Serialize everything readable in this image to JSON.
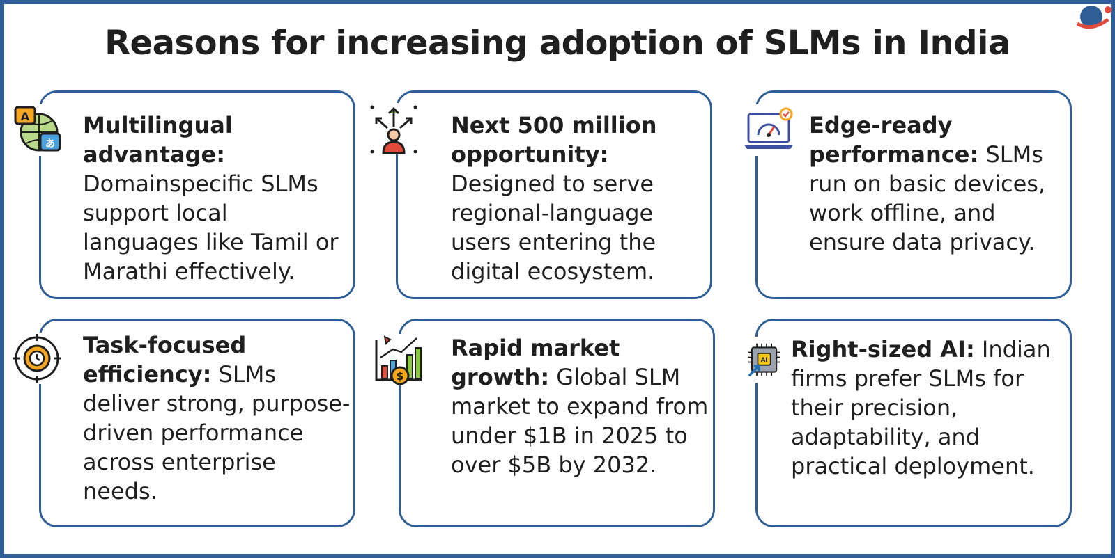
{
  "title": "Reasons for increasing adoption of SLMs in India",
  "logo_icon": "brand-logo-icon",
  "cards": [
    {
      "heading": "Multilingual advantage:",
      "body": "Domainspecific SLMs support local languages like Tamil or Marathi effectively.",
      "icon": "language-translation-icon"
    },
    {
      "heading": "Next 500 million opportunity:",
      "body": "Designed to serve regional-language users entering the digital ecosystem.",
      "icon": "growth-person-icon"
    },
    {
      "heading": "Edge-ready performance:",
      "body": "SLMs run on basic devices, work offline, and ensure data privacy.",
      "icon": "laptop-speedometer-icon"
    },
    {
      "heading": "Task-focused efficiency:",
      "body": "SLMs deliver strong, purpose-driven performance across enterprise needs.",
      "icon": "gear-clock-icon"
    },
    {
      "heading": "Rapid market growth:",
      "body": "Global SLM market to expand from under $1B in 2025 to over $5B by 2032.",
      "icon": "rocket-chart-icon"
    },
    {
      "heading": "Right-sized AI:",
      "body": "Indian firms prefer SLMs for their precision, adaptability, and practical deployment.",
      "icon": "ai-chip-icon"
    }
  ],
  "colors": {
    "border": "#2f5f96",
    "text": "#1f1f1f",
    "accent_orange": "#f5a623",
    "accent_green": "#8cc63f",
    "accent_red": "#e04b3c"
  }
}
